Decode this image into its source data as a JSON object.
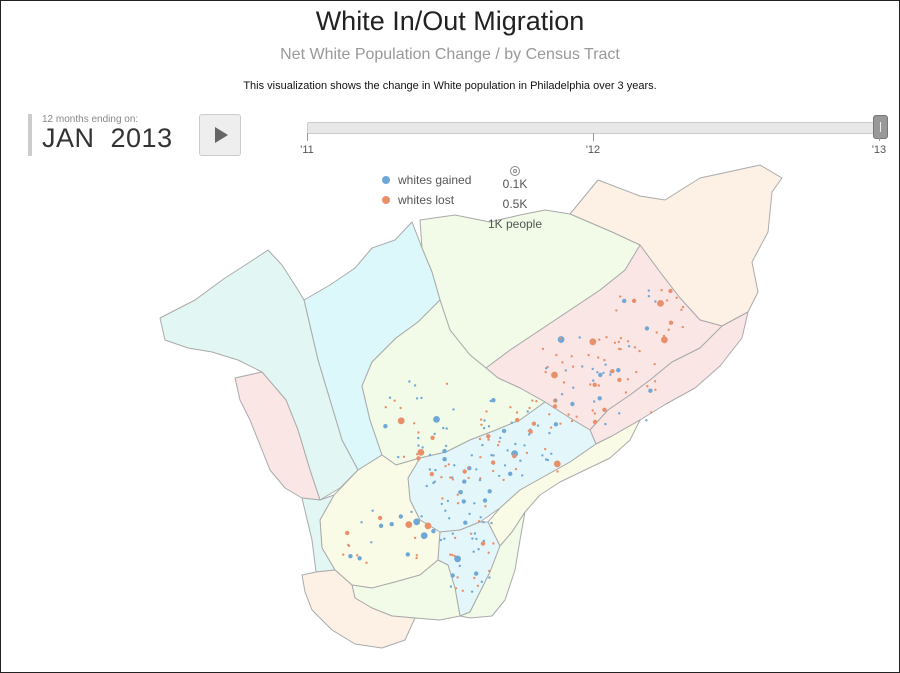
{
  "header": {
    "title": "White In/Out Migration",
    "subtitle": "Net White Population Change / by Census Tract",
    "description": "This visualization shows the change in White population in Philadelphia over 3 years."
  },
  "period": {
    "label": "12 months ending on:",
    "month": "JAN",
    "year": "2013"
  },
  "controls": {
    "play_icon": "play-icon"
  },
  "timeline": {
    "ticks": [
      "'11",
      "'12",
      "'13"
    ],
    "position": 1.0
  },
  "legend": {
    "gained_label": "whites gained",
    "lost_label": "whites lost",
    "gained_color": "#6fa8d6",
    "lost_color": "#e8906a",
    "sizes": [
      "0.1K",
      "0.5K",
      "1K people"
    ]
  },
  "map": {
    "region_colors": {
      "light_blue": "#e3f7fa",
      "light_cyan": "#ddf8fb",
      "light_green": "#f1fbe8",
      "light_yellow": "#fafbe6",
      "light_pink": "#fbe6e6",
      "light_orange": "#fdf1e6",
      "light_teal": "#e2f7f3"
    }
  }
}
